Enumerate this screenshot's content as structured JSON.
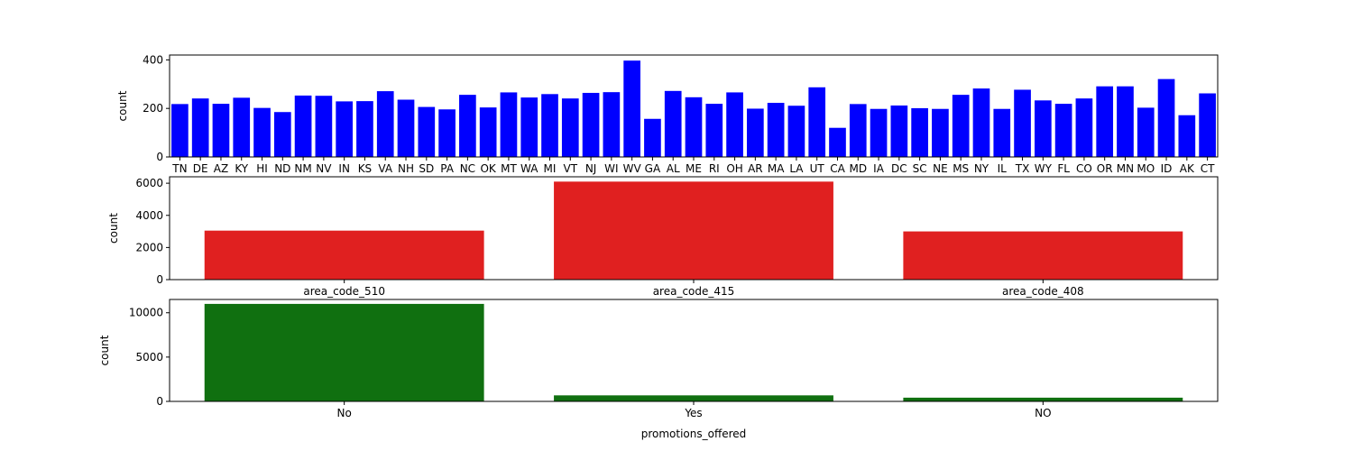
{
  "chart_data": [
    {
      "type": "bar",
      "xlabel": "",
      "ylabel": "count",
      "ylim": [
        0,
        420
      ],
      "yticks": [
        0,
        200,
        400
      ],
      "color": "#0000ff",
      "categories": [
        "TN",
        "DE",
        "AZ",
        "KY",
        "HI",
        "ND",
        "NM",
        "NV",
        "IN",
        "KS",
        "VA",
        "NH",
        "SD",
        "PA",
        "NC",
        "OK",
        "MT",
        "WA",
        "MI",
        "VT",
        "NJ",
        "WI",
        "WV",
        "GA",
        "AL",
        "ME",
        "RI",
        "OH",
        "AR",
        "MA",
        "LA",
        "UT",
        "CA",
        "MD",
        "IA",
        "DC",
        "SC",
        "NE",
        "MS",
        "NY",
        "IL",
        "TX",
        "WY",
        "FL",
        "CO",
        "OR",
        "MN",
        "MO",
        "ID",
        "AK",
        "CT"
      ],
      "values": [
        218,
        241,
        219,
        244,
        202,
        185,
        253,
        252,
        229,
        230,
        271,
        236,
        206,
        196,
        256,
        204,
        266,
        245,
        259,
        241,
        264,
        267,
        397,
        157,
        272,
        246,
        219,
        266,
        199,
        223,
        211,
        287,
        120,
        218,
        198,
        212,
        201,
        198,
        256,
        282,
        198,
        277,
        233,
        219,
        241,
        291,
        291,
        203,
        321,
        172,
        262
      ]
    },
    {
      "type": "bar",
      "xlabel": "",
      "ylabel": "count",
      "ylim": [
        0,
        6400
      ],
      "yticks": [
        0,
        2000,
        4000,
        6000
      ],
      "color": "#e02020",
      "categories": [
        "area_code_510",
        "area_code_415",
        "area_code_408"
      ],
      "values": [
        3050,
        6100,
        3000
      ]
    },
    {
      "type": "bar",
      "xlabel": "promotions_offered",
      "ylabel": "count",
      "ylim": [
        0,
        11500
      ],
      "yticks": [
        0,
        5000,
        10000
      ],
      "color": "#107010",
      "categories": [
        "No",
        "Yes",
        "NO"
      ],
      "values": [
        11000,
        680,
        420
      ]
    }
  ]
}
